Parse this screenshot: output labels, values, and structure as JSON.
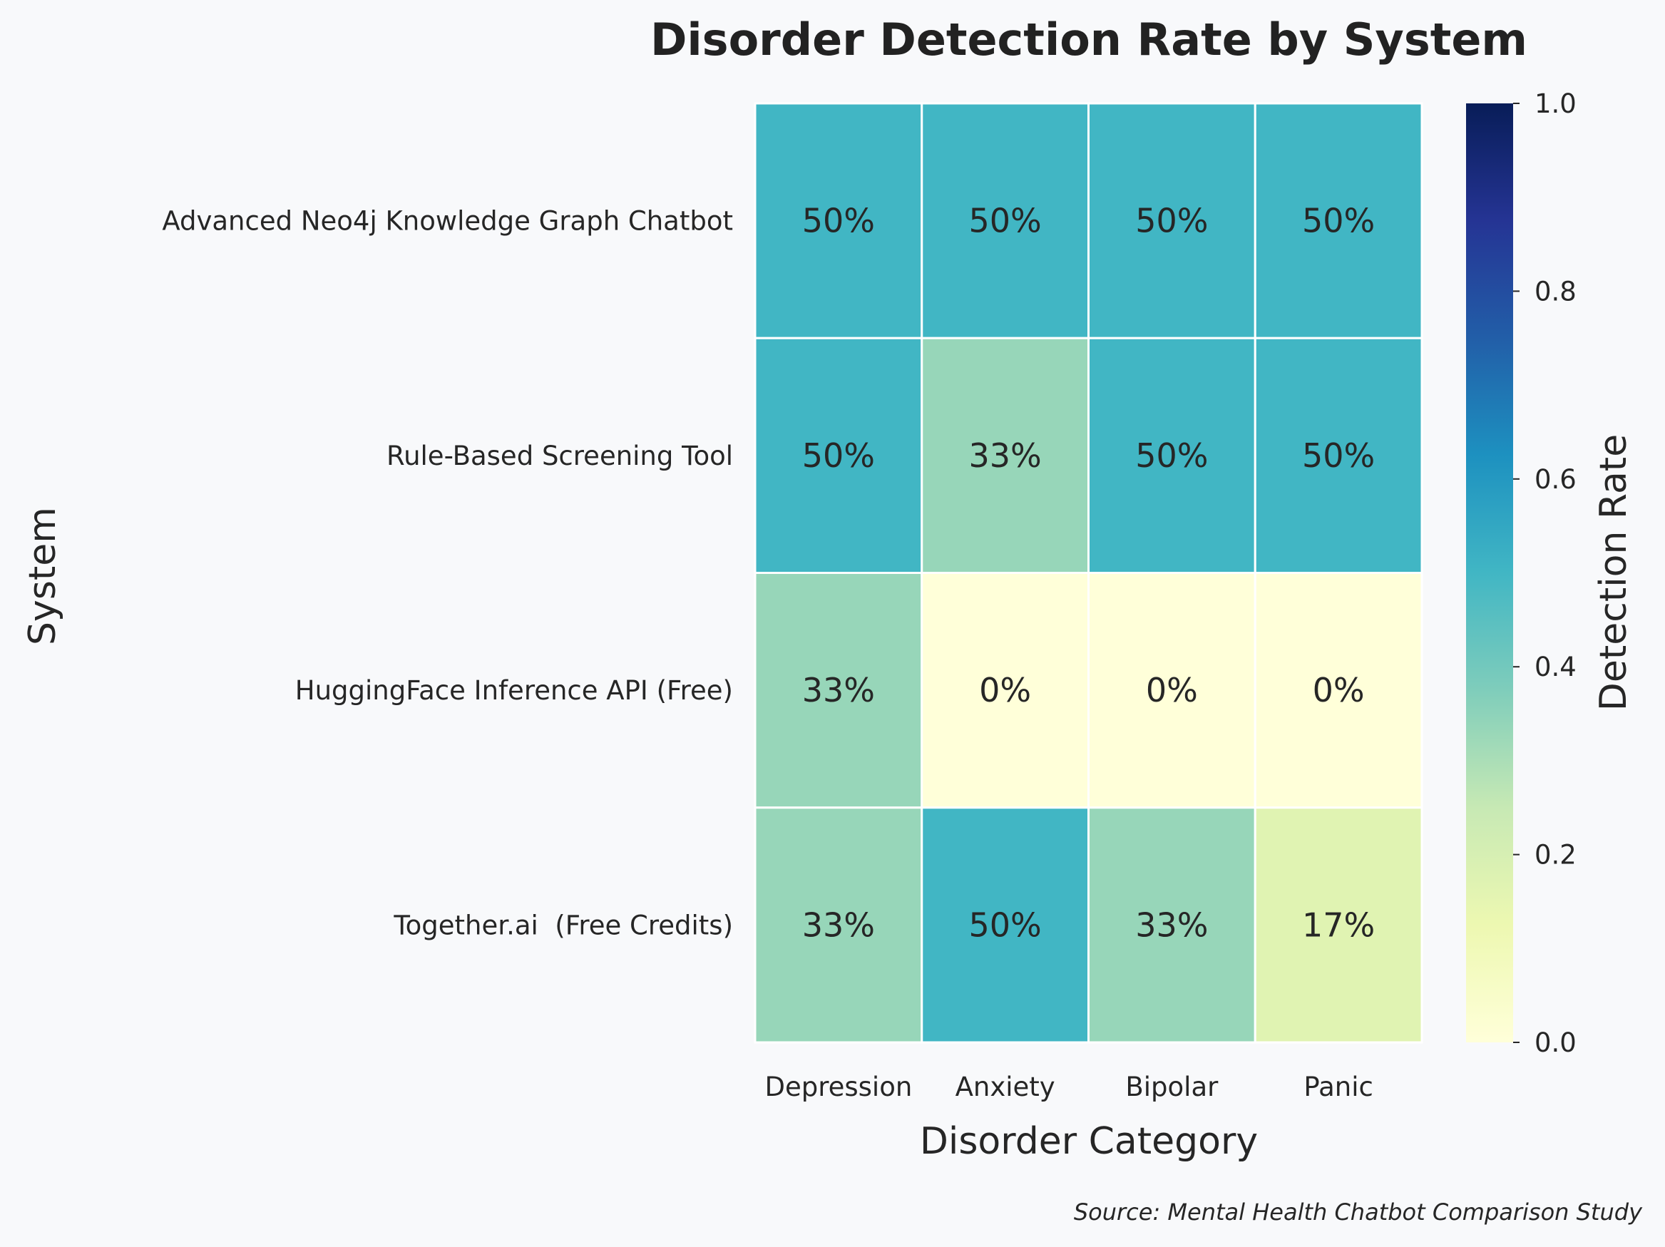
{
  "chart_data": {
    "type": "heatmap",
    "title": "Disorder Detection Rate by System",
    "xlabel": "Disorder Category",
    "ylabel": "System",
    "x_categories": [
      "Depression",
      "Anxiety",
      "Bipolar",
      "Panic"
    ],
    "y_categories": [
      "Advanced Neo4j Knowledge Graph Chatbot",
      "Rule-Based Screening Tool",
      "HuggingFace Inference API (Free)",
      "Together.ai  (Free Credits)"
    ],
    "values": [
      [
        0.5,
        0.5,
        0.5,
        0.5
      ],
      [
        0.5,
        0.333,
        0.5,
        0.5
      ],
      [
        0.333,
        0.0,
        0.0,
        0.0
      ],
      [
        0.333,
        0.5,
        0.333,
        0.167
      ]
    ],
    "cell_labels": [
      [
        "50%",
        "50%",
        "50%",
        "50%"
      ],
      [
        "50%",
        "33%",
        "50%",
        "50%"
      ],
      [
        "33%",
        "0%",
        "0%",
        "0%"
      ],
      [
        "33%",
        "50%",
        "33%",
        "17%"
      ]
    ],
    "colorbar": {
      "label": "Detection Rate",
      "range": [
        0,
        1
      ],
      "ticks": [
        "0.0",
        "0.2",
        "0.4",
        "0.6",
        "0.8",
        "1.0"
      ],
      "colormap": "YlGnBu",
      "stops": [
        "#ffffd9",
        "#edf8b1",
        "#c7e9b4",
        "#7fcdbb",
        "#41b6c4",
        "#1d91c0",
        "#225ea8",
        "#253494",
        "#081d58"
      ]
    },
    "source": "Source: Mental Health Chatbot Comparison Study"
  }
}
